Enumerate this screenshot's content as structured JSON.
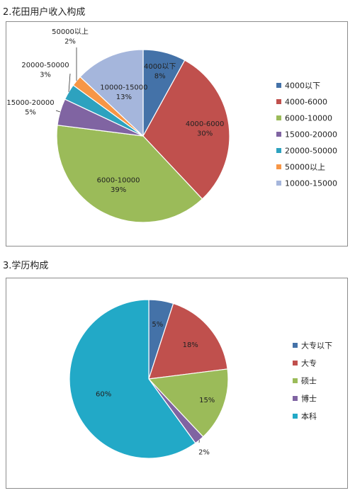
{
  "headings": {
    "income": "2.花田用户收入构成",
    "education": "3.学历构成"
  },
  "chart_data": [
    {
      "type": "pie",
      "title": "",
      "legend_position": "right",
      "slices": [
        {
          "label": "4000以下",
          "value": 8,
          "display": "8%",
          "color": "#4472a8"
        },
        {
          "label": "4000-6000",
          "value": 30,
          "display": "30%",
          "color": "#c0504d"
        },
        {
          "label": "6000-10000",
          "value": 39,
          "display": "39%",
          "color": "#9bbb59"
        },
        {
          "label": "15000-20000",
          "value": 5,
          "display": "5%",
          "color": "#8064a2"
        },
        {
          "label": "20000-50000",
          "value": 3,
          "display": "3%",
          "color": "#2da2bf"
        },
        {
          "label": "50000以上",
          "value": 2,
          "display": "2%",
          "color": "#f79646"
        },
        {
          "label": "10000-15000",
          "value": 13,
          "display": "13%",
          "color": "#a5b6dc"
        }
      ]
    },
    {
      "type": "pie",
      "title": "",
      "legend_position": "right",
      "slices": [
        {
          "label": "大专以下",
          "value": 5,
          "display": "5%",
          "color": "#4472a8"
        },
        {
          "label": "大专",
          "value": 18,
          "display": "18%",
          "color": "#c0504d"
        },
        {
          "label": "硕士",
          "value": 15,
          "display": "15%",
          "color": "#9bbb59"
        },
        {
          "label": "博士",
          "value": 2,
          "display": "2%",
          "color": "#8064a2"
        },
        {
          "label": "本科",
          "value": 60,
          "display": "60%",
          "color": "#22a9c7"
        }
      ]
    }
  ]
}
